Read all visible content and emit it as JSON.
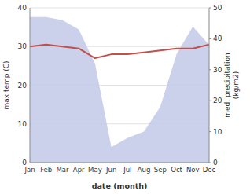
{
  "chart_data": {
    "type": "line",
    "categories": [
      "Jan",
      "Feb",
      "Mar",
      "Apr",
      "May",
      "Jun",
      "Jul",
      "Aug",
      "Sep",
      "Oct",
      "Nov",
      "Dec"
    ],
    "series": [
      {
        "type": "area",
        "axis": "y2",
        "color": "#c5cce8",
        "values": [
          47.0,
          47.0,
          46.0,
          43.0,
          32.0,
          5.0,
          8.0,
          10.0,
          18.0,
          35.0,
          44.0,
          38.0
        ]
      },
      {
        "type": "line",
        "color": "#c0504d",
        "values": [
          30.0,
          30.5,
          30.0,
          29.5,
          27.0,
          28.0,
          28.0,
          28.5,
          29.0,
          29.5,
          29.5,
          30.5
        ]
      }
    ],
    "xlabel": "date (month)",
    "ylabel": "max temp (C)",
    "y2label": "med. precipitation\n(kg/m2)",
    "ylim": [
      0,
      40
    ],
    "yticks": [
      0,
      10,
      20,
      30,
      40
    ],
    "y2lim": [
      0,
      50
    ],
    "y2ticks": [
      0,
      10,
      20,
      30,
      40,
      50
    ],
    "grid": true
  }
}
